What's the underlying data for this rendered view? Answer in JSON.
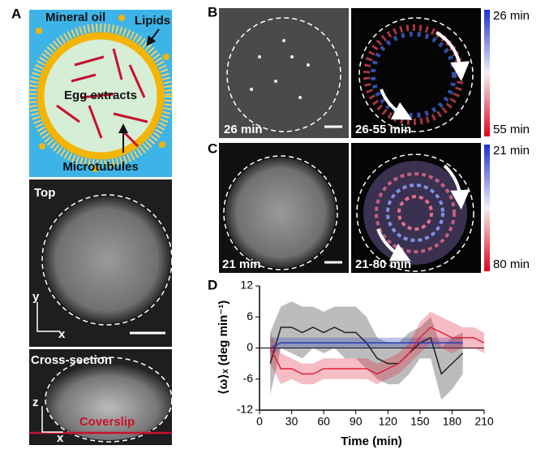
{
  "panels": {
    "a": {
      "label": "A",
      "mineral_oil": "Mineral oil",
      "lipids": "Lipids",
      "egg_extracts": "Egg extracts",
      "microtubules": "Microtubules",
      "top": "Top",
      "top_y": "y",
      "top_x": "x",
      "cross_section": "Cross-section",
      "cs_z": "z",
      "cs_x": "x",
      "coverslip": "Coverslip"
    },
    "b": {
      "label": "B",
      "left_time": "26 min",
      "right_time": "26-55 min",
      "colorbar_top": "26 min",
      "colorbar_bottom": "55 min"
    },
    "c": {
      "label": "C",
      "left_time": "21 min",
      "right_time": "21-80 min",
      "colorbar_top": "21 min",
      "colorbar_bottom": "80 min"
    }
  },
  "chart_data": {
    "type": "line",
    "panel_label": "D",
    "xlabel": "Time (min)",
    "ylabel": "⟨ω⟩ₓ (deg min⁻¹)",
    "x": [
      10,
      20,
      30,
      40,
      50,
      60,
      70,
      80,
      90,
      100,
      110,
      120,
      130,
      140,
      150,
      160,
      170,
      180,
      190,
      200,
      210
    ],
    "xlim": [
      0,
      210
    ],
    "xticks": [
      0,
      30,
      60,
      90,
      120,
      150,
      180,
      210
    ],
    "ylim": [
      -12,
      12
    ],
    "yticks": [
      -12,
      -6,
      0,
      6,
      12
    ],
    "zero_line": true,
    "series": [
      {
        "color": "#222222",
        "values": [
          -3,
          4,
          4,
          3,
          4,
          3,
          4,
          3,
          3,
          1,
          -2,
          -3,
          -3,
          -1,
          1,
          2,
          -5,
          -3,
          -1,
          null,
          null
        ],
        "errors": [
          6,
          4,
          5,
          5,
          4,
          4,
          4,
          5,
          5,
          5,
          4,
          4,
          4,
          4,
          3,
          4,
          5,
          5,
          4,
          null,
          null
        ]
      },
      {
        "color": "#2a3fb0",
        "values": [
          0,
          1,
          1,
          1,
          1,
          1,
          1,
          1,
          1,
          1,
          1,
          1,
          1,
          1,
          1,
          1,
          1,
          1,
          1,
          null,
          null
        ],
        "errors": [
          2,
          1,
          1,
          1,
          1,
          1,
          1,
          1,
          1,
          1,
          1,
          1,
          1,
          1,
          1,
          1,
          1,
          1,
          1,
          null,
          null
        ]
      },
      {
        "color": "#e0203a",
        "values": [
          0,
          -4,
          -4,
          -5,
          -5,
          -4,
          -4,
          -4,
          -4,
          -4,
          -5,
          -4,
          -3,
          -1,
          2,
          4,
          3,
          2,
          2,
          2,
          1
        ],
        "errors": [
          3,
          3,
          2,
          2,
          2,
          2,
          2,
          2,
          2,
          2,
          2,
          2,
          2,
          2,
          3,
          3,
          3,
          3,
          2,
          2,
          2
        ]
      }
    ]
  }
}
